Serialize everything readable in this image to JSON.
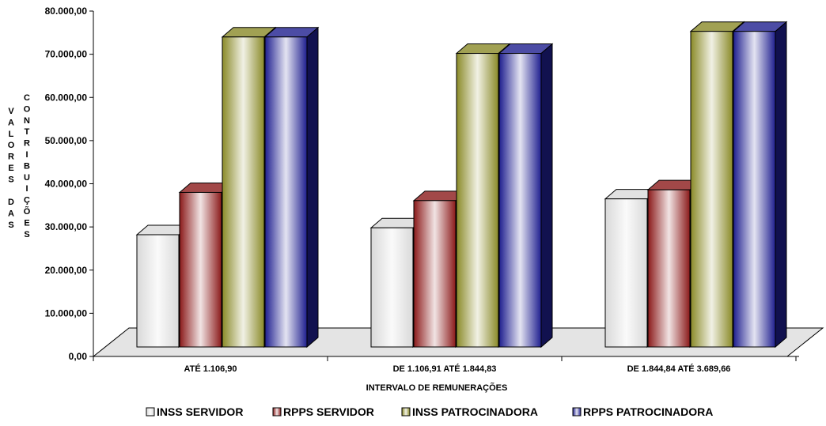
{
  "chart_data": {
    "type": "bar",
    "title": "",
    "xlabel": "INTERVALO DE REMUNERAÇÕES",
    "ylabel_col1": [
      "V",
      "A",
      "L",
      "O",
      "R",
      "E",
      "S",
      "",
      "D",
      "A",
      "S"
    ],
    "ylabel_col2": [
      "C",
      "O",
      "N",
      "T",
      "R",
      "I",
      "B",
      "U",
      "I",
      "Ç",
      "Õ",
      "E",
      "S"
    ],
    "ylim": [
      0,
      80000
    ],
    "yticks": [
      {
        "value": 0,
        "label": "0,00"
      },
      {
        "value": 10000,
        "label": "10.000,00"
      },
      {
        "value": 20000,
        "label": "20.000,00"
      },
      {
        "value": 30000,
        "label": "30.000,00"
      },
      {
        "value": 40000,
        "label": "40.000,00"
      },
      {
        "value": 50000,
        "label": "50.000,00"
      },
      {
        "value": 60000,
        "label": "60.000,00"
      },
      {
        "value": 70000,
        "label": "70.000,00"
      },
      {
        "value": 80000,
        "label": "80.000,00"
      }
    ],
    "categories": [
      "ATÉ 1.106,90",
      "DE 1.106,91 ATÉ 1.844,83",
      "DE 1.844,84 ATÉ 3.689,66"
    ],
    "series": [
      {
        "name": "INSS SERVIDOR",
        "color": "#d9d9d9",
        "values": [
          26000,
          27600,
          34300
        ]
      },
      {
        "name": "RPPS SERVIDOR",
        "color": "#8b1a1a",
        "values": [
          35800,
          33900,
          36400
        ]
      },
      {
        "name": "INSS PATROCINADORA",
        "color": "#8a8a28",
        "values": [
          71800,
          68000,
          73100
        ]
      },
      {
        "name": "RPPS PATROCINADORA",
        "color": "#1f1f8f",
        "values": [
          71800,
          68000,
          73100
        ]
      }
    ],
    "legend_position": "bottom",
    "grid": false
  }
}
